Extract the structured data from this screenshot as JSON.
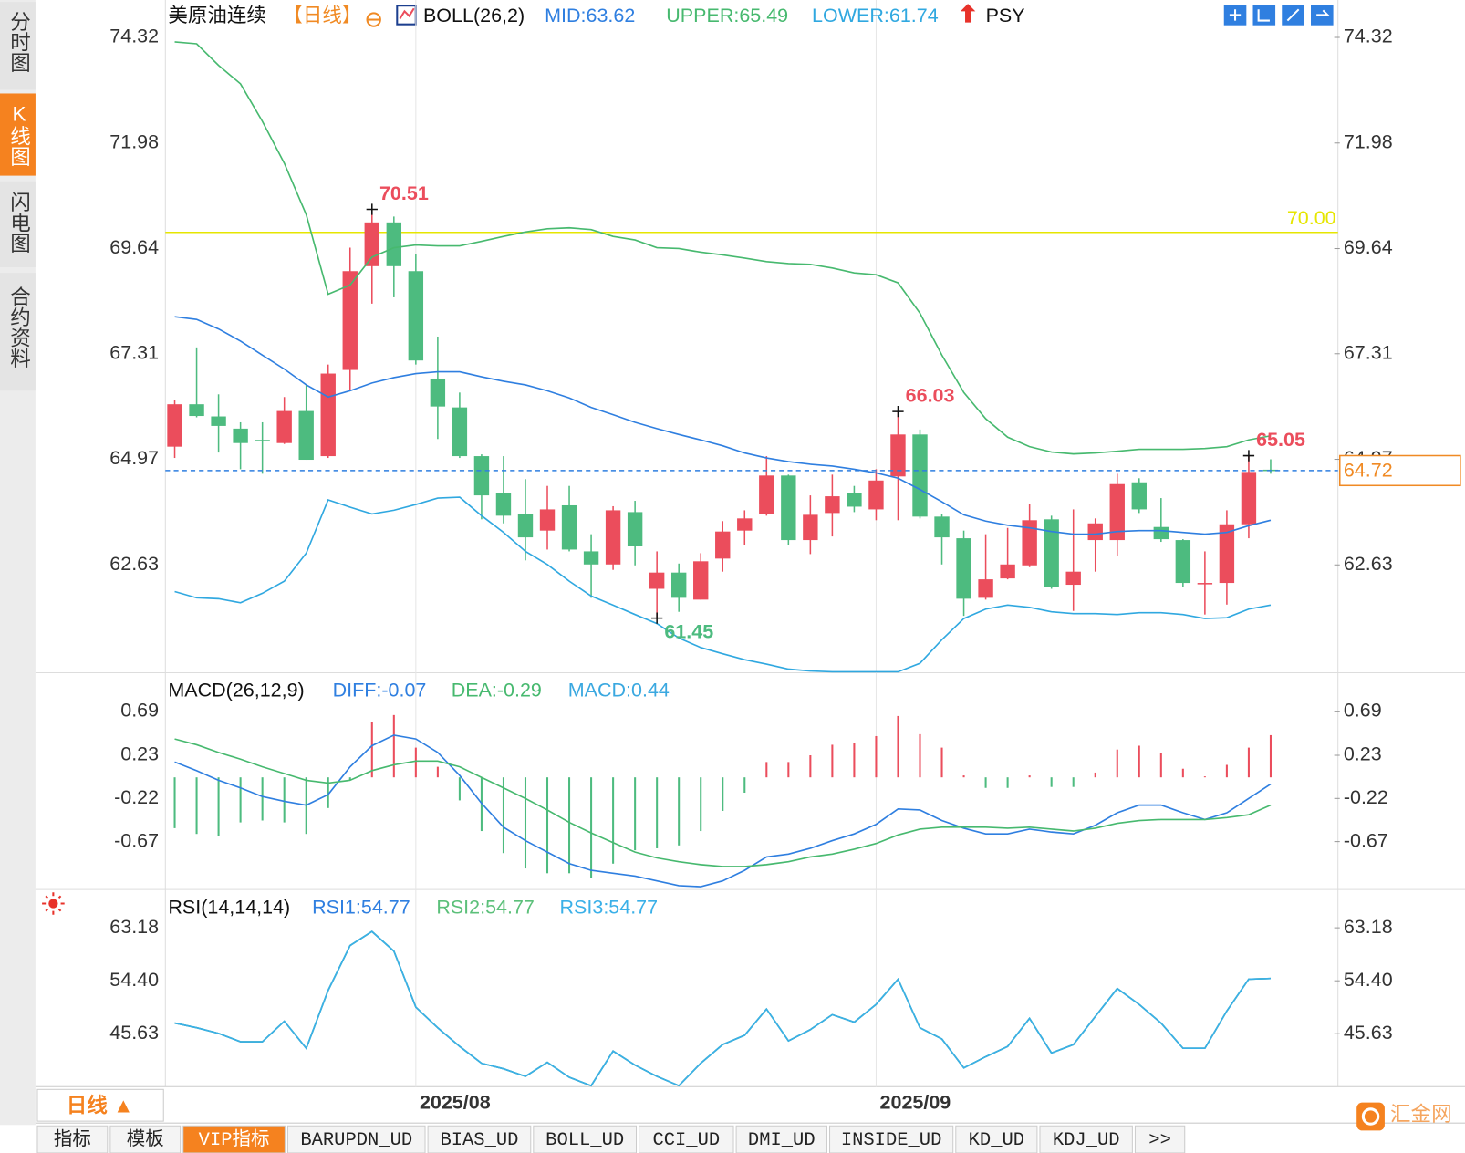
{
  "sidebar": [
    "分时图",
    "K线图",
    "闪电图",
    "合约资料"
  ],
  "period_button": "日线 ▲",
  "tabs": [
    "指标",
    "模板",
    "VIP指标",
    "BARUPDN_UD",
    "BIAS_UD",
    "BOLL_UD",
    "CCI_UD",
    "DMI_UD",
    "INSIDE_UD",
    "KD_UD",
    "KDJ_UD",
    ">>"
  ],
  "logo": "汇金网",
  "chart_data": [
    {
      "type": "candlestick",
      "title": "美原油连续",
      "period": "【日线】",
      "indicator": "BOLL(26,2)",
      "extra": "PSY",
      "categories": [
        null,
        null,
        null,
        null,
        null,
        null,
        null,
        null,
        null,
        null,
        null,
        "2025/08",
        null,
        null,
        null,
        null,
        null,
        null,
        null,
        null,
        null,
        null,
        null,
        null,
        null,
        null,
        null,
        null,
        null,
        null,
        null,
        null,
        "2025/09",
        null,
        null,
        null,
        null,
        null,
        null,
        null,
        null,
        null,
        null,
        null,
        null,
        null,
        null,
        null,
        null,
        null,
        null
      ],
      "open": [
        65.25,
        66.19,
        65.92,
        65.65,
        65.4,
        65.33,
        66.04,
        65.04,
        66.95,
        69.25,
        70.22,
        69.14,
        66.76,
        66.12,
        65.04,
        64.23,
        63.76,
        63.39,
        63.95,
        62.93,
        62.64,
        63.8,
        62.1,
        62.46,
        61.86,
        62.77,
        63.39,
        63.76,
        64.61,
        63.18,
        63.78,
        64.23,
        63.86,
        64.59,
        65.52,
        63.7,
        63.22,
        61.9,
        62.33,
        62.62,
        63.64,
        62.19,
        63.18,
        63.18,
        64.46,
        63.47,
        63.18,
        62.21,
        62.23,
        63.53,
        64.74
      ],
      "high": [
        66.28,
        67.45,
        66.41,
        65.79,
        65.79,
        66.35,
        66.62,
        67.07,
        69.66,
        70.51,
        70.35,
        69.52,
        67.69,
        66.45,
        65.08,
        65.04,
        64.53,
        64.38,
        64.38,
        63.31,
        63.93,
        64.05,
        62.93,
        62.66,
        62.89,
        63.6,
        63.84,
        65.04,
        64.63,
        64.17,
        64.63,
        64.38,
        64.75,
        66.03,
        65.63,
        63.76,
        63.39,
        63.31,
        63.45,
        63.97,
        63.72,
        63.86,
        63.66,
        64.65,
        64.55,
        64.11,
        63.2,
        62.93,
        63.84,
        65.05,
        64.97
      ],
      "low": [
        65.0,
        65.9,
        65.12,
        64.75,
        64.65,
        65.31,
        64.96,
        65.0,
        66.5,
        68.42,
        68.56,
        67.07,
        65.42,
        65.0,
        63.64,
        63.55,
        62.73,
        62.97,
        62.93,
        61.9,
        62.52,
        62.62,
        61.45,
        61.59,
        61.86,
        62.48,
        63.08,
        63.72,
        63.08,
        62.87,
        63.26,
        63.8,
        63.62,
        63.62,
        63.66,
        62.64,
        61.5,
        61.86,
        62.31,
        62.58,
        62.1,
        61.61,
        62.48,
        62.83,
        63.78,
        63.14,
        62.15,
        61.53,
        61.75,
        63.22,
        64.65
      ],
      "close": [
        66.19,
        65.93,
        65.71,
        65.33,
        65.38,
        66.04,
        64.96,
        66.87,
        69.14,
        70.22,
        69.25,
        67.16,
        66.14,
        65.04,
        64.17,
        63.72,
        63.24,
        63.86,
        62.97,
        62.64,
        63.84,
        63.04,
        62.46,
        61.9,
        62.71,
        63.37,
        63.66,
        64.61,
        63.18,
        63.74,
        64.15,
        63.92,
        64.5,
        65.52,
        63.7,
        63.24,
        61.88,
        62.31,
        62.64,
        63.62,
        62.15,
        62.48,
        63.55,
        64.42,
        63.86,
        63.2,
        62.23,
        62.23,
        63.53,
        64.69,
        64.72
      ],
      "up_color": "#eb4d5c",
      "down_color": "#4dbb7f",
      "series": [
        {
          "name": "MID:63.62",
          "color": "#2f7fe0",
          "values": [
            68.13,
            68.07,
            67.86,
            67.59,
            67.28,
            66.97,
            66.62,
            66.35,
            66.49,
            66.66,
            66.78,
            66.87,
            66.91,
            66.91,
            66.8,
            66.7,
            66.62,
            66.49,
            66.33,
            66.12,
            65.96,
            65.79,
            65.65,
            65.52,
            65.4,
            65.27,
            65.11,
            65.0,
            64.92,
            64.86,
            64.82,
            64.75,
            64.67,
            64.55,
            64.3,
            64.03,
            63.74,
            63.6,
            63.51,
            63.45,
            63.37,
            63.31,
            63.31,
            63.37,
            63.39,
            63.39,
            63.35,
            63.31,
            63.35,
            63.5,
            63.62
          ]
        },
        {
          "name": "UPPER:65.49",
          "color": "#47b96f",
          "values": [
            74.22,
            74.18,
            73.7,
            73.29,
            72.46,
            71.53,
            70.39,
            68.63,
            68.83,
            69.45,
            69.66,
            69.72,
            69.7,
            69.7,
            69.8,
            69.91,
            70.01,
            70.08,
            70.1,
            70.06,
            69.91,
            69.83,
            69.66,
            69.64,
            69.56,
            69.5,
            69.43,
            69.35,
            69.31,
            69.29,
            69.21,
            69.1,
            69.06,
            68.88,
            68.21,
            67.28,
            66.45,
            65.87,
            65.46,
            65.25,
            65.13,
            65.09,
            65.11,
            65.15,
            65.19,
            65.19,
            65.19,
            65.21,
            65.25,
            65.4,
            65.49
          ]
        },
        {
          "name": "LOWER:61.74",
          "color": "#30a8e0",
          "values": [
            62.04,
            61.9,
            61.88,
            61.79,
            62.0,
            62.27,
            62.89,
            64.07,
            63.91,
            63.76,
            63.84,
            63.97,
            64.11,
            64.13,
            63.72,
            63.35,
            62.93,
            62.64,
            62.27,
            61.94,
            61.74,
            61.53,
            61.33,
            61.01,
            60.8,
            60.66,
            60.53,
            60.43,
            60.32,
            60.28,
            60.26,
            60.26,
            60.26,
            60.26,
            60.45,
            60.97,
            61.44,
            61.65,
            61.74,
            61.69,
            61.59,
            61.55,
            61.55,
            61.53,
            61.57,
            61.57,
            61.53,
            61.44,
            61.46,
            61.65,
            61.74
          ]
        }
      ],
      "ylim": [
        60.24,
        74.32
      ],
      "yticks": [
        74.32,
        71.98,
        69.64,
        67.31,
        64.97,
        62.63
      ],
      "hlines": [
        {
          "value": 70,
          "label": "70.00",
          "color": "#e6e600"
        }
      ],
      "last_price": 64.72,
      "last_price_color": "#f08a24",
      "annotations": [
        "70.51",
        "66.03",
        "61.45",
        "65.05"
      ]
    },
    {
      "type": "macd",
      "title": "MACD(26,12,9)",
      "series": [
        {
          "name": "DIFF:-0.07",
          "color": "#2f7fe0",
          "values": [
            0.16,
            0.07,
            -0.03,
            -0.11,
            -0.2,
            -0.25,
            -0.29,
            -0.18,
            0.11,
            0.33,
            0.44,
            0.4,
            0.26,
            0.02,
            -0.27,
            -0.52,
            -0.66,
            -0.78,
            -0.9,
            -0.97,
            -1.0,
            -1.03,
            -1.08,
            -1.13,
            -1.14,
            -1.08,
            -0.97,
            -0.83,
            -0.8,
            -0.74,
            -0.66,
            -0.59,
            -0.49,
            -0.33,
            -0.34,
            -0.45,
            -0.53,
            -0.59,
            -0.59,
            -0.54,
            -0.57,
            -0.59,
            -0.5,
            -0.37,
            -0.29,
            -0.29,
            -0.37,
            -0.44,
            -0.37,
            -0.22,
            -0.07
          ]
        },
        {
          "name": "DEA:-0.29",
          "color": "#47b96f",
          "values": [
            0.4,
            0.34,
            0.26,
            0.19,
            0.11,
            0.04,
            -0.03,
            -0.06,
            -0.03,
            0.07,
            0.13,
            0.17,
            0.17,
            0.11,
            0.0,
            -0.11,
            -0.22,
            -0.34,
            -0.47,
            -0.58,
            -0.68,
            -0.78,
            -0.84,
            -0.88,
            -0.91,
            -0.93,
            -0.93,
            -0.91,
            -0.88,
            -0.83,
            -0.8,
            -0.75,
            -0.69,
            -0.6,
            -0.54,
            -0.52,
            -0.52,
            -0.52,
            -0.53,
            -0.52,
            -0.54,
            -0.56,
            -0.53,
            -0.48,
            -0.45,
            -0.44,
            -0.44,
            -0.44,
            -0.42,
            -0.39,
            -0.29
          ]
        }
      ],
      "bars": {
        "name": "MACD:0.44",
        "color": "#3aa8e0",
        "up_color": "#eb4d5c",
        "down_color": "#4dbb7f",
        "values": [
          -0.53,
          -0.59,
          -0.61,
          -0.47,
          -0.45,
          -0.47,
          -0.59,
          -0.32,
          -0.03,
          0.58,
          0.65,
          0.31,
          0.11,
          -0.24,
          -0.56,
          -0.79,
          -0.95,
          -1.0,
          -1.0,
          -1.05,
          -0.9,
          -0.76,
          -0.74,
          -0.71,
          -0.56,
          -0.35,
          -0.16,
          0.16,
          0.16,
          0.23,
          0.34,
          0.36,
          0.43,
          0.64,
          0.45,
          0.31,
          0.02,
          -0.11,
          -0.11,
          0.02,
          -0.1,
          -0.1,
          0.05,
          0.29,
          0.33,
          0.25,
          0.09,
          0.01,
          0.13,
          0.31,
          0.44
        ]
      },
      "ylim": [
        -1.15,
        0.75
      ],
      "yticks": [
        0.69,
        0.23,
        -0.22,
        -0.67
      ]
    },
    {
      "type": "line",
      "title": "RSI(14,14,14)",
      "series": [
        {
          "name": "RSI1:54.77",
          "color": "#2f7fe0",
          "values": [
            47.39,
            46.62,
            45.69,
            44.29,
            44.29,
            47.7,
            43.21,
            52.81,
            60.24,
            62.56,
            59.31,
            50.02,
            46.62,
            43.52,
            40.73,
            39.81,
            38.57,
            40.89,
            38.41,
            37.02,
            42.75,
            40.42,
            38.57,
            37.02,
            40.73,
            43.83,
            45.38,
            49.71,
            44.45,
            46.31,
            48.78,
            47.55,
            50.49,
            54.67,
            46.62,
            44.76,
            39.96,
            41.82,
            43.52,
            48.17,
            42.44,
            43.83,
            48.47,
            53.12,
            50.49,
            47.39,
            43.21,
            43.21,
            49.4,
            54.67,
            54.77
          ]
        },
        {
          "name": "RSI2:54.77",
          "color": "#5cc07a",
          "values": [
            47.39,
            46.62,
            45.69,
            44.29,
            44.29,
            47.7,
            43.21,
            52.81,
            60.24,
            62.56,
            59.31,
            50.02,
            46.62,
            43.52,
            40.73,
            39.81,
            38.57,
            40.89,
            38.41,
            37.02,
            42.75,
            40.42,
            38.57,
            37.02,
            40.73,
            43.83,
            45.38,
            49.71,
            44.45,
            46.31,
            48.78,
            47.55,
            50.49,
            54.67,
            46.62,
            44.76,
            39.96,
            41.82,
            43.52,
            48.17,
            42.44,
            43.83,
            48.47,
            53.12,
            50.49,
            47.39,
            43.21,
            43.21,
            49.4,
            54.67,
            54.77
          ]
        },
        {
          "name": "RSI3:54.77",
          "color": "#3ab0e8",
          "values": [
            47.39,
            46.62,
            45.69,
            44.29,
            44.29,
            47.7,
            43.21,
            52.81,
            60.24,
            62.56,
            59.31,
            50.02,
            46.62,
            43.52,
            40.73,
            39.81,
            38.57,
            40.89,
            38.41,
            37.02,
            42.75,
            40.42,
            38.57,
            37.02,
            40.73,
            43.83,
            45.38,
            49.71,
            44.45,
            46.31,
            48.78,
            47.55,
            50.49,
            54.67,
            46.62,
            44.76,
            39.96,
            41.82,
            43.52,
            48.17,
            42.44,
            43.83,
            48.47,
            53.12,
            50.49,
            47.39,
            43.21,
            43.21,
            49.4,
            54.67,
            54.77
          ]
        }
      ],
      "ylim": [
        36.86,
        64.42
      ],
      "yticks": [
        63.18,
        {
          "value": 54.4,
          "label": "54.40"
        },
        45.63
      ]
    }
  ]
}
